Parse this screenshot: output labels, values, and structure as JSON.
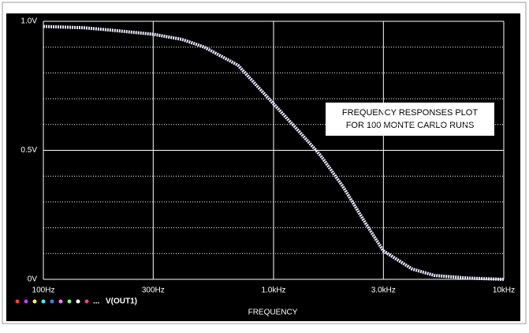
{
  "chart_data": {
    "type": "line",
    "xlabel": "FREQUENCY",
    "annotation": [
      "FREQUENCY RESPONSES PLOT",
      "FOR 100 MONTE CARLO RUNS"
    ],
    "legend_prefix": "...",
    "xscale": "log",
    "x": [
      100,
      150,
      200,
      300,
      400,
      500,
      700,
      1000,
      1300,
      1600,
      2000,
      2500,
      3000,
      4000,
      5000,
      7000,
      10000
    ],
    "series": [
      {
        "name": "V(OUT1)",
        "color": "#e8e8ff",
        "values": [
          0.98,
          0.975,
          0.965,
          0.95,
          0.93,
          0.9,
          0.83,
          0.68,
          0.57,
          0.48,
          0.36,
          0.22,
          0.11,
          0.04,
          0.015,
          0.005,
          0
        ]
      }
    ],
    "xlim": [
      100,
      10000
    ],
    "xticks": [
      {
        "value": 100,
        "label": "100Hz"
      },
      {
        "value": 300,
        "label": "300Hz"
      },
      {
        "value": 1000,
        "label": "1.0kHz"
      },
      {
        "value": 3000,
        "label": "3.0kHz"
      },
      {
        "value": 10000,
        "label": "10kHz"
      }
    ],
    "ylim": [
      0,
      1
    ],
    "yticks": [
      {
        "value": 0,
        "label": "0V"
      },
      {
        "value": 0.5,
        "label": "0.5V"
      },
      {
        "value": 1,
        "label": "1.0V"
      }
    ],
    "yminor": [
      0.1,
      0.2,
      0.3,
      0.4,
      0.6,
      0.7,
      0.8,
      0.9
    ],
    "grid": true
  }
}
